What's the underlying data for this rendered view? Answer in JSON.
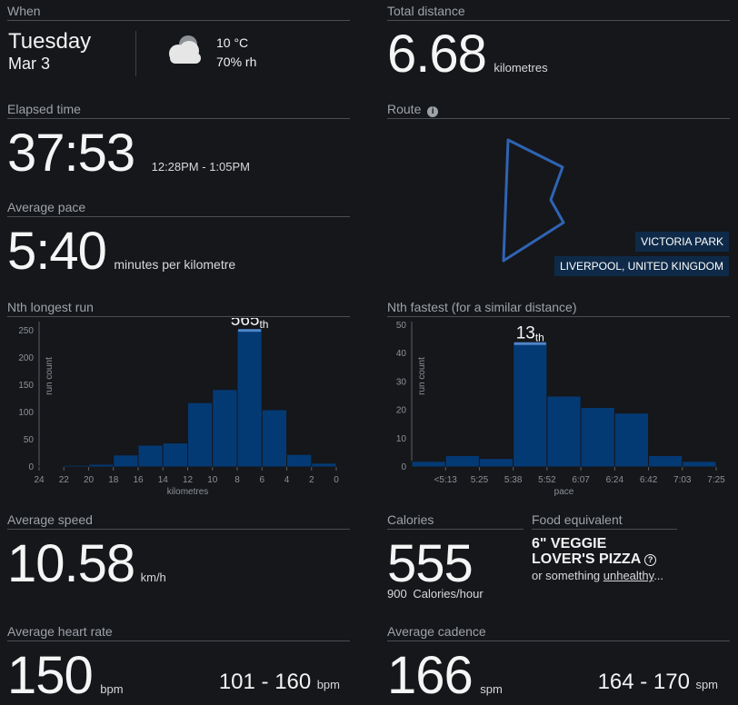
{
  "when": {
    "title": "When",
    "day": "Tuesday",
    "date": "Mar 3",
    "weather_icon": "partly-cloudy-icon",
    "temperature": "10 °C",
    "humidity": "70% rh"
  },
  "distance": {
    "title": "Total distance",
    "value": "6.68",
    "unit": "kilometres"
  },
  "elapsed": {
    "title": "Elapsed time",
    "value": "37:53",
    "range": "12:28PM - 1:05PM"
  },
  "route": {
    "title": "Route",
    "info_icon": "info-icon",
    "location_park": "VICTORIA PARK",
    "location_city": "LIVERPOOL, UNITED KINGDOM",
    "color": "#2f64b4"
  },
  "pace": {
    "title": "Average pace",
    "value": "5:40",
    "unit": "minutes per kilometre"
  },
  "longest": {
    "title": "Nth longest run",
    "rank_num": "565",
    "rank_suffix": "th",
    "chart_data": {
      "type": "bar",
      "categories": [
        "24-22",
        "22-20",
        "20-18",
        "18-16",
        "16-14",
        "14-12",
        "12-10",
        "10-8",
        "8-6",
        "6-4",
        "4-2",
        "2-0"
      ],
      "values": [
        1,
        3,
        5,
        22,
        40,
        44,
        118,
        142,
        253,
        105,
        23,
        7
      ],
      "highlight_index": 8,
      "x_ticks": [
        "24",
        "22",
        "20",
        "18",
        "16",
        "14",
        "12",
        "10",
        "8",
        "6",
        "4",
        "2",
        "0"
      ],
      "y_ticks": [
        "0",
        "50",
        "100",
        "150",
        "200",
        "250"
      ],
      "ylim": [
        0,
        260
      ],
      "ylabel": "run count",
      "xlabel": "kilometres"
    }
  },
  "fastest": {
    "title": "Nth fastest (for a similar distance)",
    "rank_num": "13",
    "rank_suffix": "th",
    "chart_data": {
      "type": "bar",
      "values": [
        2,
        4,
        3,
        44,
        25,
        21,
        19,
        4,
        2
      ],
      "highlight_index": 3,
      "x_ticks": [
        "<5:13",
        "5:25",
        "5:38",
        "5:52",
        "6:07",
        "6:24",
        "6:42",
        "7:03",
        "7:25"
      ],
      "y_ticks": [
        "0",
        "10",
        "20",
        "30",
        "40",
        "50"
      ],
      "ylim": [
        0,
        50
      ],
      "ylabel": "run count",
      "xlabel": "pace"
    }
  },
  "speed": {
    "title": "Average speed",
    "value": "10.58",
    "unit": "km/h"
  },
  "calories": {
    "title": "Calories",
    "value": "555",
    "rate_value": "900",
    "rate_unit": "Calories/hour"
  },
  "food": {
    "title": "Food equivalent",
    "line1": "6\" VEGGIE",
    "line2": "LOVER'S PIZZA",
    "help_icon": "question-circle-icon",
    "prefix": "or something ",
    "link": "unhealthy",
    "suffix": "..."
  },
  "heart": {
    "title": "Average heart rate",
    "value": "150",
    "unit": "bpm",
    "range": "101 - 160",
    "range_unit": "bpm"
  },
  "cadence": {
    "title": "Average cadence",
    "value": "166",
    "unit": "spm",
    "range": "164 - 170",
    "range_unit": "spm"
  }
}
